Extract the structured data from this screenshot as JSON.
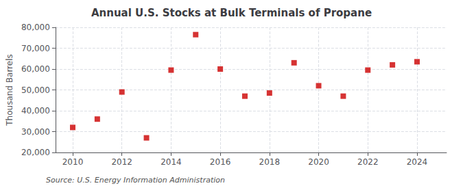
{
  "chart_data": {
    "type": "scatter",
    "title": "Annual U.S. Stocks at Bulk Terminals of Propane",
    "ylabel": "Thousand Barrels",
    "annotations": [
      "Source: U.S. Energy Information Administration"
    ],
    "x": [
      2010,
      2011,
      2012,
      2013,
      2014,
      2015,
      2016,
      2017,
      2018,
      2019,
      2020,
      2021,
      2022,
      2023,
      2024
    ],
    "values": [
      32000,
      36000,
      49000,
      27000,
      59500,
      76500,
      60000,
      47000,
      48500,
      63000,
      52000,
      47000,
      59500,
      62000,
      63500
    ],
    "color": "#cc0000",
    "marker": "square",
    "xlim": [
      2009.3,
      2025.2
    ],
    "ylim": [
      20000,
      80000
    ],
    "xticks": [
      2010,
      2012,
      2014,
      2016,
      2018,
      2020,
      2022,
      2024
    ],
    "yticks": [
      {
        "value": 20000,
        "label": "20,000"
      },
      {
        "value": 30000,
        "label": "30,000"
      },
      {
        "value": 40000,
        "label": "40,000"
      },
      {
        "value": 50000,
        "label": "50,000"
      },
      {
        "value": 60000,
        "label": "60,000"
      },
      {
        "value": 70000,
        "label": "70,000"
      },
      {
        "value": 80000,
        "label": "80,000"
      }
    ],
    "grid": true
  }
}
